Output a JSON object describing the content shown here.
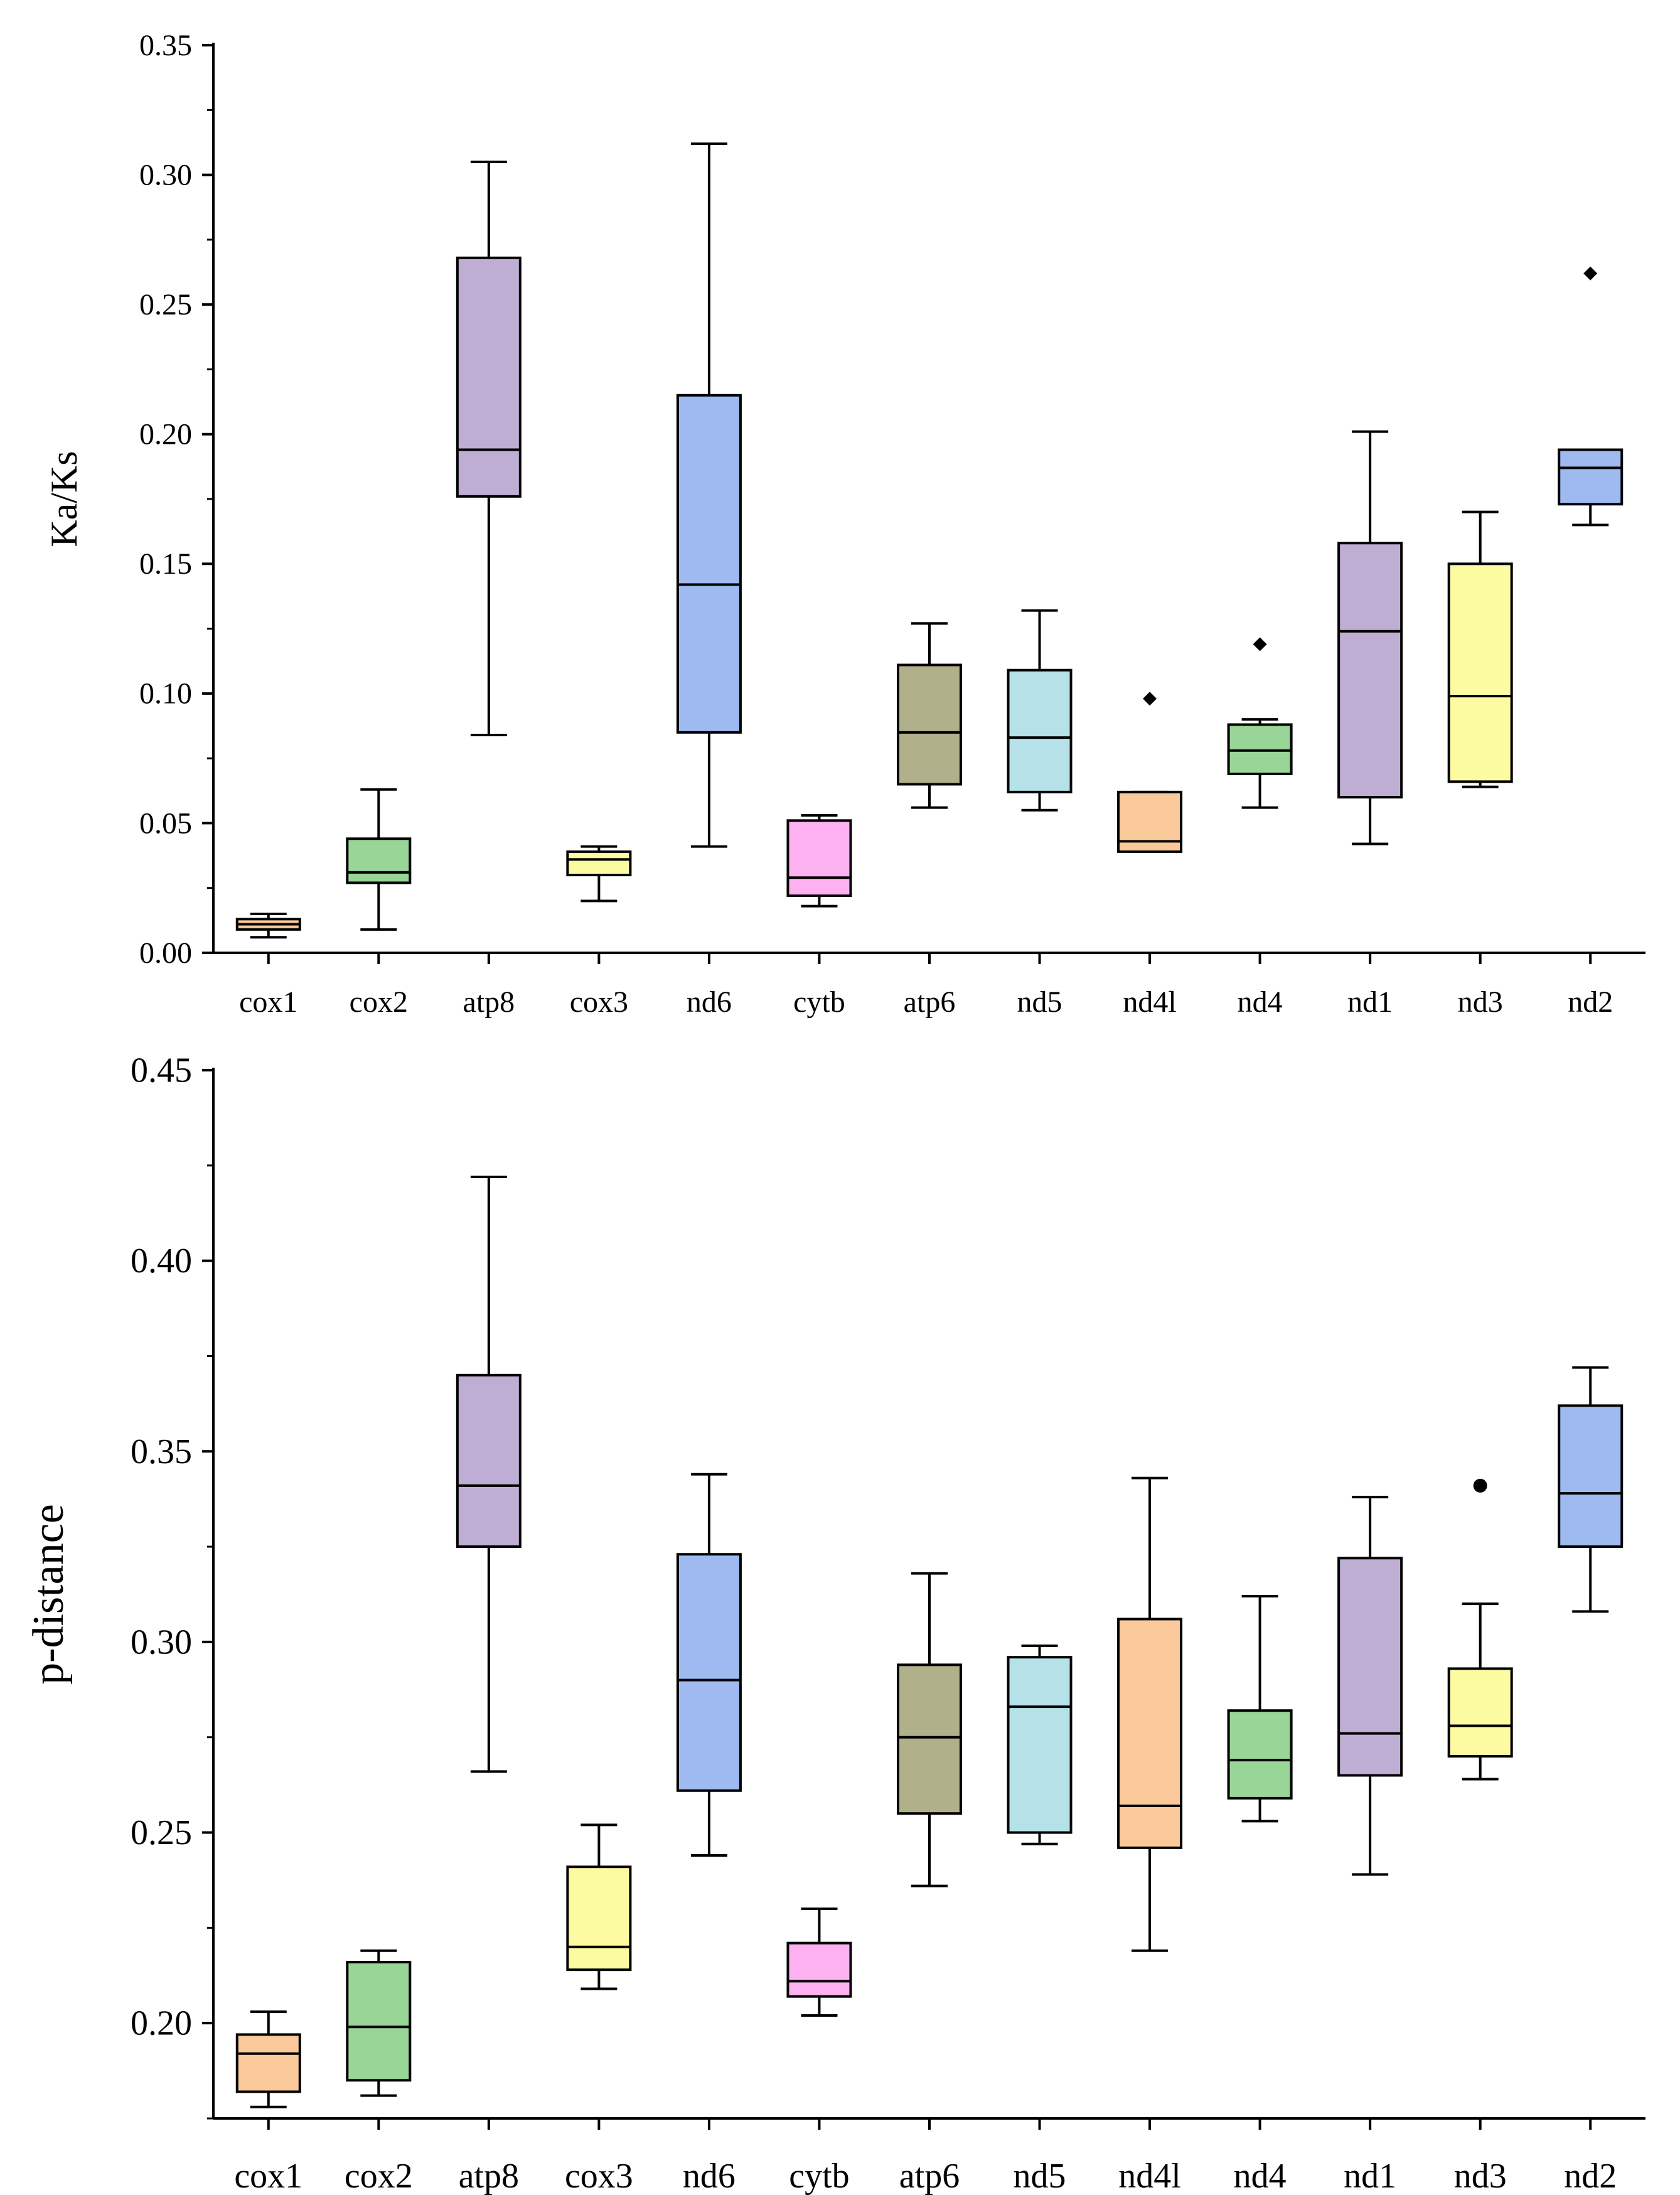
{
  "chart_data": [
    {
      "type": "box",
      "ylabel": "Ka/Ks",
      "xlabel": "",
      "ylim": [
        0,
        0.35
      ],
      "y_ticks": [
        "0.00",
        "0.05",
        "0.10",
        "0.15",
        "0.20",
        "0.25",
        "0.30",
        "0.35"
      ],
      "y_tick_values": [
        0,
        0.05,
        0.1,
        0.15,
        0.2,
        0.25,
        0.3,
        0.35
      ],
      "categories": [
        "cox1",
        "cox2",
        "atp8",
        "cox3",
        "nd6",
        "cytb",
        "atp6",
        "nd5",
        "nd4l",
        "nd4",
        "nd1",
        "nd3",
        "nd2"
      ],
      "boxes": [
        {
          "min": 0.006,
          "q1": 0.009,
          "median": 0.011,
          "q3": 0.013,
          "max": 0.015,
          "outliers": []
        },
        {
          "min": 0.009,
          "q1": 0.027,
          "median": 0.031,
          "q3": 0.044,
          "max": 0.063,
          "outliers": []
        },
        {
          "min": 0.084,
          "q1": 0.176,
          "median": 0.194,
          "q3": 0.268,
          "max": 0.305,
          "outliers": []
        },
        {
          "min": 0.02,
          "q1": 0.03,
          "median": 0.036,
          "q3": 0.039,
          "max": 0.041,
          "outliers": []
        },
        {
          "min": 0.041,
          "q1": 0.085,
          "median": 0.142,
          "q3": 0.215,
          "max": 0.312,
          "outliers": []
        },
        {
          "min": 0.018,
          "q1": 0.022,
          "median": 0.029,
          "q3": 0.051,
          "max": 0.053,
          "outliers": []
        },
        {
          "min": 0.056,
          "q1": 0.065,
          "median": 0.085,
          "q3": 0.111,
          "max": 0.127,
          "outliers": []
        },
        {
          "min": 0.055,
          "q1": 0.062,
          "median": 0.083,
          "q3": 0.109,
          "max": 0.132,
          "outliers": []
        },
        {
          "min": 0.039,
          "q1": 0.039,
          "median": 0.043,
          "q3": 0.062,
          "max": 0.062,
          "outliers": [
            0.098
          ]
        },
        {
          "min": 0.056,
          "q1": 0.069,
          "median": 0.078,
          "q3": 0.088,
          "max": 0.09,
          "outliers": [
            0.119
          ]
        },
        {
          "min": 0.042,
          "q1": 0.06,
          "median": 0.124,
          "q3": 0.158,
          "max": 0.201,
          "outliers": []
        },
        {
          "min": 0.064,
          "q1": 0.066,
          "median": 0.099,
          "q3": 0.15,
          "max": 0.17,
          "outliers": []
        },
        {
          "min": 0.165,
          "q1": 0.173,
          "median": 0.187,
          "q3": 0.194,
          "max": 0.194,
          "outliers": [
            0.262
          ]
        }
      ]
    },
    {
      "type": "box",
      "ylabel": "p-distance",
      "xlabel": "",
      "ylim": [
        0.175,
        0.45
      ],
      "y_ticks": [
        "0.20",
        "0.25",
        "0.30",
        "0.35",
        "0.40",
        "0.45"
      ],
      "y_tick_values": [
        0.2,
        0.25,
        0.3,
        0.35,
        0.4,
        0.45
      ],
      "categories": [
        "cox1",
        "cox2",
        "atp8",
        "cox3",
        "nd6",
        "cytb",
        "atp6",
        "nd5",
        "nd4l",
        "nd4",
        "nd1",
        "nd3",
        "nd2"
      ],
      "boxes": [
        {
          "min": 0.178,
          "q1": 0.182,
          "median": 0.192,
          "q3": 0.197,
          "max": 0.203,
          "outliers": []
        },
        {
          "min": 0.181,
          "q1": 0.185,
          "median": 0.199,
          "q3": 0.216,
          "max": 0.219,
          "outliers": []
        },
        {
          "min": 0.266,
          "q1": 0.325,
          "median": 0.341,
          "q3": 0.37,
          "max": 0.422,
          "outliers": []
        },
        {
          "min": 0.209,
          "q1": 0.214,
          "median": 0.22,
          "q3": 0.241,
          "max": 0.252,
          "outliers": []
        },
        {
          "min": 0.244,
          "q1": 0.261,
          "median": 0.29,
          "q3": 0.323,
          "max": 0.344,
          "outliers": []
        },
        {
          "min": 0.202,
          "q1": 0.207,
          "median": 0.211,
          "q3": 0.221,
          "max": 0.23,
          "outliers": []
        },
        {
          "min": 0.236,
          "q1": 0.255,
          "median": 0.275,
          "q3": 0.294,
          "max": 0.318,
          "outliers": []
        },
        {
          "min": 0.247,
          "q1": 0.25,
          "median": 0.283,
          "q3": 0.296,
          "max": 0.299,
          "outliers": []
        },
        {
          "min": 0.219,
          "q1": 0.246,
          "median": 0.257,
          "q3": 0.306,
          "max": 0.343,
          "outliers": []
        },
        {
          "min": 0.253,
          "q1": 0.259,
          "median": 0.269,
          "q3": 0.282,
          "max": 0.312,
          "outliers": []
        },
        {
          "min": 0.239,
          "q1": 0.265,
          "median": 0.276,
          "q3": 0.322,
          "max": 0.338,
          "outliers": []
        },
        {
          "min": 0.264,
          "q1": 0.27,
          "median": 0.278,
          "q3": 0.293,
          "max": 0.31,
          "outliers": [
            0.341
          ]
        },
        {
          "min": 0.308,
          "q1": 0.325,
          "median": 0.339,
          "q3": 0.362,
          "max": 0.372,
          "outliers": []
        }
      ]
    }
  ],
  "colors": {
    "cox1": "#FAC99A",
    "cox2": "#98D597",
    "atp8": "#BEAED3",
    "cox3": "#FDFBA1",
    "nd6": "#9EBAF1",
    "cytb": "#FDB1F0",
    "atp6": "#B0B08B",
    "nd5": "#B5E2E8",
    "nd4l": "#FAC99A",
    "nd4": "#98D597",
    "nd1": "#BEAED3",
    "nd3": "#FDFBA1",
    "nd2": "#9EBAF1"
  }
}
